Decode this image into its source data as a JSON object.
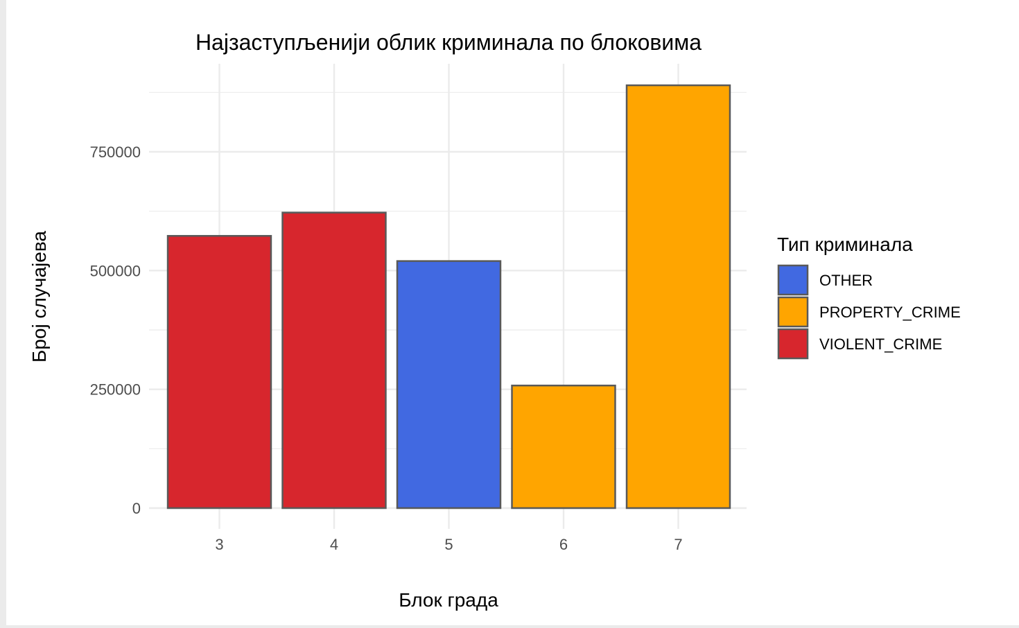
{
  "chart_data": {
    "type": "bar",
    "title": "Најзаступљенији облик криминала по блоковима",
    "xlabel": "Блок града",
    "ylabel": "Број случајева",
    "categories": [
      "3",
      "4",
      "5",
      "6",
      "7"
    ],
    "values": [
      573000,
      622000,
      520000,
      258000,
      890000
    ],
    "fill_group": [
      "VIOLENT_CRIME",
      "VIOLENT_CRIME",
      "OTHER",
      "PROPERTY_CRIME",
      "PROPERTY_CRIME"
    ],
    "ylim": [
      0,
      935000
    ],
    "yticks": [
      0,
      250000,
      500000,
      750000
    ],
    "ytick_labels": [
      "0",
      "250000",
      "500000",
      "750000"
    ],
    "y_minor_ticks": [
      125000,
      375000,
      625000,
      875000
    ],
    "grid": true,
    "legend": {
      "title": "Тип криминала",
      "placement": "right",
      "entries": [
        {
          "label": "OTHER",
          "color": "#4169e1"
        },
        {
          "label": "PROPERTY_CRIME",
          "color": "#ffa500"
        },
        {
          "label": "VIOLENT_CRIME",
          "color": "#d7262d"
        }
      ]
    },
    "colors": {
      "bar_outline": "#595959",
      "grid": "#ebebeb"
    }
  }
}
